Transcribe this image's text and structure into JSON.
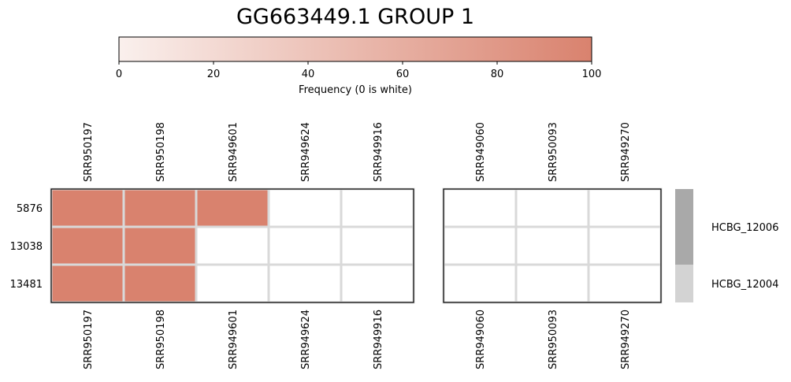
{
  "title": "GG663449.1 GROUP 1",
  "colorbar": {
    "label": "Frequency (0 is white)",
    "min": 0,
    "max": 100,
    "ticks": [
      0,
      20,
      40,
      60,
      80,
      100
    ],
    "color_low": "#faf0ed",
    "color_high": "#d9826e"
  },
  "chart_data": {
    "type": "heatmap",
    "title": "GG663449.1 GROUP 1",
    "rows": [
      "5876",
      "13038",
      "13481"
    ],
    "panels": [
      {
        "columns": [
          "SRR950197",
          "SRR950198",
          "SRR949601",
          "SRR949624",
          "SRR949916"
        ],
        "values": [
          [
            100,
            100,
            100,
            0,
            0
          ],
          [
            100,
            100,
            0,
            0,
            0
          ],
          [
            100,
            100,
            0,
            0,
            0
          ]
        ]
      },
      {
        "columns": [
          "SRR949060",
          "SRR950093",
          "SRR949270"
        ],
        "values": [
          [
            0,
            0,
            0
          ],
          [
            0,
            0,
            0
          ],
          [
            0,
            0,
            0
          ]
        ]
      }
    ],
    "row_groups": [
      {
        "label": "HCBG_12006",
        "rows": [
          "5876",
          "13038"
        ],
        "color": "#a9a9a9"
      },
      {
        "label": "HCBG_12004",
        "rows": [
          "13481"
        ],
        "color": "#d3d3d3"
      }
    ],
    "colorbar_label": "Frequency (0 is white)",
    "vmin": 0,
    "vmax": 100,
    "zero_color": "#ffffff",
    "grid_color": "#d9d9d9"
  }
}
